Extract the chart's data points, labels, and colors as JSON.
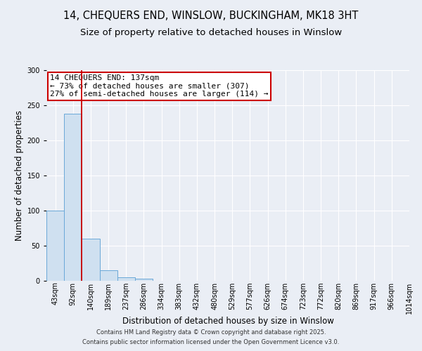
{
  "title1": "14, CHEQUERS END, WINSLOW, BUCKINGHAM, MK18 3HT",
  "title2": "Size of property relative to detached houses in Winslow",
  "xlabel": "Distribution of detached houses by size in Winslow",
  "ylabel": "Number of detached properties",
  "bin_labels": [
    "43sqm",
    "92sqm",
    "140sqm",
    "189sqm",
    "237sqm",
    "286sqm",
    "334sqm",
    "383sqm",
    "432sqm",
    "480sqm",
    "529sqm",
    "577sqm",
    "626sqm",
    "674sqm",
    "723sqm",
    "772sqm",
    "820sqm",
    "869sqm",
    "917sqm",
    "966sqm",
    "1014sqm"
  ],
  "bar_values": [
    100,
    238,
    60,
    15,
    5,
    3,
    0,
    0,
    0,
    0,
    0,
    0,
    0,
    0,
    0,
    0,
    0,
    0,
    0,
    0
  ],
  "bar_color": "#cfe0f0",
  "bar_edgecolor": "#6aA8d8",
  "vline_x": 2,
  "vline_color": "#cc0000",
  "annotation_text": "14 CHEQUERS END: 137sqm\n← 73% of detached houses are smaller (307)\n27% of semi-detached houses are larger (114) →",
  "annotation_box_color": "#cc0000",
  "annotation_facecolor": "white",
  "ylim": [
    0,
    300
  ],
  "yticks": [
    0,
    50,
    100,
    150,
    200,
    250,
    300
  ],
  "background_color": "#eaeef5",
  "plot_bg_color": "#eaeef5",
  "footer1": "Contains HM Land Registry data © Crown copyright and database right 2025.",
  "footer2": "Contains public sector information licensed under the Open Government Licence v3.0.",
  "title_fontsize": 10.5,
  "subtitle_fontsize": 9.5,
  "xlabel_fontsize": 8.5,
  "ylabel_fontsize": 8.5,
  "tick_fontsize": 7,
  "footer_fontsize": 6,
  "annot_fontsize": 8
}
